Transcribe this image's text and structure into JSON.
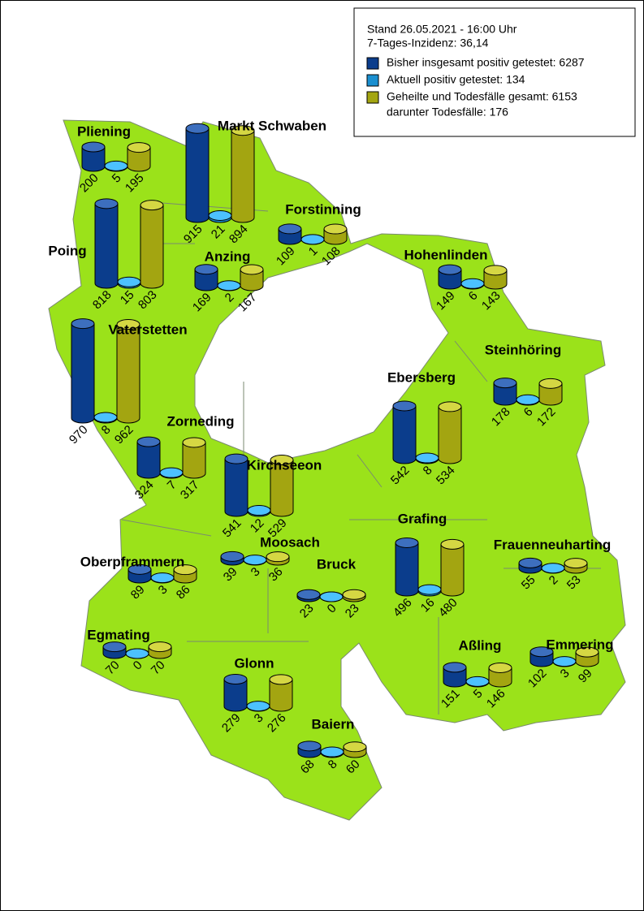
{
  "legend": {
    "date": "Stand 26.05.2021 - 16:00 Uhr",
    "incidence": "7-Tages-Inzidenz: 36,14",
    "items": [
      {
        "label": "Bisher insgesamt positiv getestet: 6287",
        "color": "#0b3d8c"
      },
      {
        "label": "Aktuell positiv getestet: 134",
        "color": "#1a8fd0"
      },
      {
        "label": "Geheilte und Todesfälle gesamt: 6153",
        "color": "#a3a511"
      }
    ],
    "deaths": "darunter Todesfälle: 176"
  },
  "municipalities": [
    {
      "name": "Pliening",
      "values": [
        200,
        5,
        195
      ]
    },
    {
      "name": "Markt Schwaben",
      "values": [
        915,
        21,
        894
      ]
    },
    {
      "name": "Forstinning",
      "values": [
        109,
        1,
        108
      ]
    },
    {
      "name": "Poing",
      "values": [
        818,
        15,
        803
      ]
    },
    {
      "name": "Anzing",
      "values": [
        169,
        2,
        167
      ]
    },
    {
      "name": "Hohenlinden",
      "values": [
        149,
        6,
        143
      ]
    },
    {
      "name": "Vaterstetten",
      "values": [
        970,
        8,
        962
      ]
    },
    {
      "name": "Steinhöring",
      "values": [
        178,
        6,
        172
      ]
    },
    {
      "name": "Ebersberg",
      "values": [
        542,
        8,
        534
      ]
    },
    {
      "name": "Zorneding",
      "values": [
        324,
        7,
        317
      ]
    },
    {
      "name": "Kirchseeon",
      "values": [
        541,
        12,
        529
      ]
    },
    {
      "name": "Grafing",
      "values": [
        496,
        16,
        480
      ]
    },
    {
      "name": "Frauenneuharting",
      "values": [
        55,
        2,
        53
      ]
    },
    {
      "name": "Moosach",
      "values": [
        39,
        3,
        36
      ]
    },
    {
      "name": "Oberpframmern",
      "values": [
        89,
        3,
        86
      ]
    },
    {
      "name": "Bruck",
      "values": [
        23,
        0,
        23
      ]
    },
    {
      "name": "Egmating",
      "values": [
        70,
        0,
        70
      ]
    },
    {
      "name": "Aßling",
      "values": [
        151,
        5,
        146
      ]
    },
    {
      "name": "Emmering",
      "values": [
        102,
        3,
        99
      ]
    },
    {
      "name": "Glonn",
      "values": [
        279,
        3,
        276
      ]
    },
    {
      "name": "Baiern",
      "values": [
        68,
        8,
        60
      ]
    }
  ]
}
